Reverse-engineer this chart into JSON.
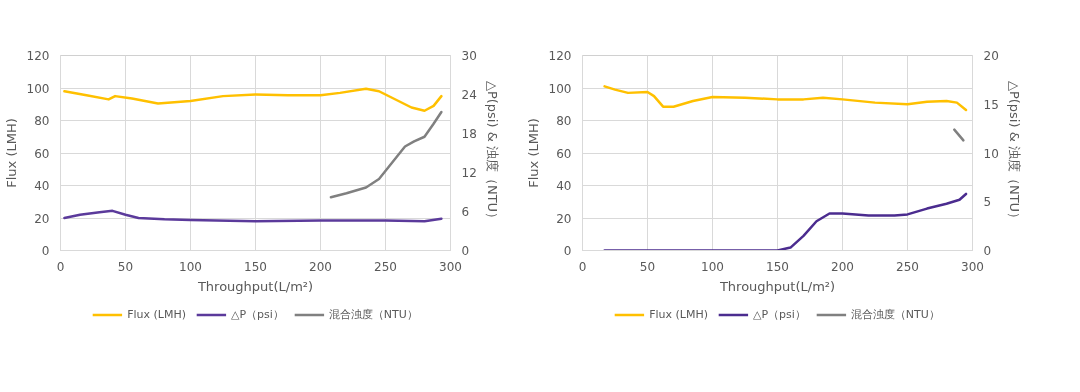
{
  "chart_data": [
    {
      "type": "line",
      "xlabel": "Throughput(L/m²)",
      "ylabel": "Flux (LMH)",
      "y2label": "△P(psi) & 浊度（NTU）",
      "xlim": [
        0,
        300
      ],
      "xticks": [
        0,
        50,
        100,
        150,
        200,
        250,
        300
      ],
      "ylim": [
        0,
        120
      ],
      "yticks": [
        0,
        20,
        40,
        60,
        80,
        100,
        120
      ],
      "y2lim": [
        0,
        30
      ],
      "y2ticks": [
        0,
        6,
        12,
        18,
        24,
        30
      ],
      "grid": true,
      "legend": "bottom",
      "marker": "none",
      "line_style": "solid",
      "series": [
        {
          "name": "Flux (LMH)",
          "color": "#ffc000",
          "x": [
            3,
            20,
            37,
            42,
            55,
            75,
            100,
            125,
            150,
            175,
            200,
            215,
            235,
            245,
            255,
            270,
            280,
            287,
            293
          ],
          "values": [
            98,
            95.5,
            93,
            95,
            93.5,
            90.5,
            92,
            95,
            96,
            95.5,
            95.5,
            97,
            99.5,
            98,
            94,
            88,
            86,
            89,
            95
          ]
        },
        {
          "name": "△P（psi）",
          "color": "#5b3a9b",
          "axis": "y2",
          "x": [
            3,
            15,
            30,
            40,
            50,
            60,
            80,
            100,
            150,
            200,
            250,
            280,
            293
          ],
          "values": [
            5,
            5.5,
            5.9,
            6.1,
            5.5,
            5,
            4.8,
            4.7,
            4.5,
            4.6,
            4.6,
            4.5,
            4.9
          ]
        },
        {
          "name": "混合浊度（NTU）",
          "color": "#808080",
          "axis": "y2",
          "x": [
            208,
            220,
            235,
            245,
            255,
            265,
            272,
            280,
            287,
            293
          ],
          "values": [
            8.2,
            8.8,
            9.7,
            11,
            13.5,
            16,
            16.8,
            17.5,
            19.5,
            21.3
          ]
        }
      ]
    },
    {
      "type": "line",
      "xlabel": "Throughput(L/m²)",
      "ylabel": "Flux (LMH)",
      "y2label": "△P(psi) & 浊度（NTU）",
      "xlim": [
        0,
        300
      ],
      "xticks": [
        0,
        50,
        100,
        150,
        200,
        250,
        300
      ],
      "ylim": [
        0,
        120
      ],
      "yticks": [
        0,
        20,
        40,
        60,
        80,
        100,
        120
      ],
      "y2lim": [
        0,
        20
      ],
      "y2ticks": [
        0,
        5,
        10,
        15,
        20
      ],
      "grid": true,
      "legend": "bottom",
      "marker": "none",
      "line_style": "solid",
      "series": [
        {
          "name": "Flux (LMH)",
          "color": "#ffc000",
          "x": [
            17,
            25,
            35,
            50,
            55,
            62,
            70,
            85,
            100,
            125,
            150,
            170,
            185,
            200,
            225,
            250,
            265,
            280,
            288,
            295
          ],
          "values": [
            101,
            99,
            97,
            97.5,
            95,
            88.5,
            88.5,
            92,
            94.5,
            94,
            93,
            93,
            94,
            93,
            91,
            90,
            91.5,
            92,
            91,
            86.5
          ]
        },
        {
          "name": "△P（psi）",
          "color": "#4b2c8f",
          "axis": "y2",
          "x": [
            17,
            100,
            150,
            160,
            170,
            180,
            190,
            200,
            220,
            240,
            250,
            265,
            280,
            290,
            295
          ],
          "values": [
            0,
            0,
            0,
            0.3,
            1.5,
            3,
            3.8,
            3.8,
            3.6,
            3.6,
            3.7,
            4.3,
            4.8,
            5.2,
            5.8
          ]
        },
        {
          "name": "混合浊度（NTU）",
          "color": "#808080",
          "axis": "y2",
          "x": [
            286,
            293
          ],
          "values": [
            12.4,
            11.3
          ]
        }
      ]
    }
  ]
}
